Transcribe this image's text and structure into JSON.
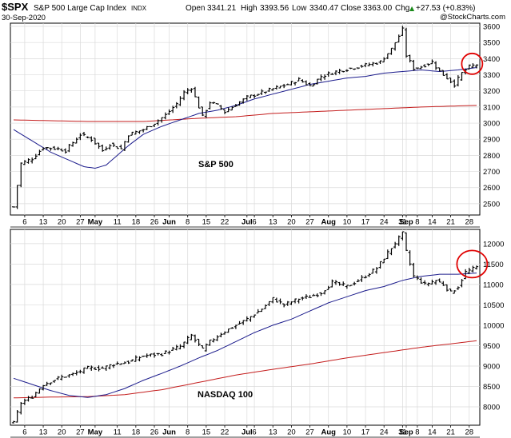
{
  "header": {
    "symbol": "$SPX",
    "name": "S&P 500 Large Cap Index",
    "exchange": "INDX",
    "date": "30-Sep-2020",
    "open_label": "Open",
    "open": "3341.21",
    "high_label": "High",
    "high": "3393.56",
    "low_label": "Low",
    "low": "3340.47",
    "close_label": "Close",
    "close": "3363.00",
    "chg_label": "Chg",
    "chg": "+27.53 (+0.83%)",
    "chg_arrow": "▲",
    "watermark": "@StockCharts.com"
  },
  "colors": {
    "price": "#000000",
    "ma50": "#1c1c8c",
    "ma200": "#c41e1e",
    "circle": "#e00000",
    "grid": "#dadada"
  },
  "x_axis": {
    "ticks": [
      {
        "label": "6",
        "i": 3,
        "bold": false
      },
      {
        "label": "13",
        "i": 8,
        "bold": false
      },
      {
        "label": "20",
        "i": 13,
        "bold": false
      },
      {
        "label": "27",
        "i": 18,
        "bold": false
      },
      {
        "label": "May",
        "i": 22,
        "bold": true
      },
      {
        "label": "11",
        "i": 28,
        "bold": false
      },
      {
        "label": "18",
        "i": 33,
        "bold": false
      },
      {
        "label": "26",
        "i": 38,
        "bold": false
      },
      {
        "label": "Jun",
        "i": 42,
        "bold": true
      },
      {
        "label": "8",
        "i": 47,
        "bold": false
      },
      {
        "label": "15",
        "i": 52,
        "bold": false
      },
      {
        "label": "22",
        "i": 57,
        "bold": false
      },
      {
        "label": "Jul",
        "i": 63,
        "bold": true
      },
      {
        "label": "6",
        "i": 65,
        "bold": false
      },
      {
        "label": "13",
        "i": 70,
        "bold": false
      },
      {
        "label": "20",
        "i": 75,
        "bold": false
      },
      {
        "label": "27",
        "i": 80,
        "bold": false
      },
      {
        "label": "Aug",
        "i": 85,
        "bold": true
      },
      {
        "label": "10",
        "i": 90,
        "bold": false
      },
      {
        "label": "17",
        "i": 95,
        "bold": false
      },
      {
        "label": "24",
        "i": 100,
        "bold": false
      },
      {
        "label": "31",
        "i": 105,
        "bold": false
      },
      {
        "label": "Sep",
        "i": 106,
        "bold": true
      },
      {
        "label": "8",
        "i": 109,
        "bold": false
      },
      {
        "label": "14",
        "i": 113,
        "bold": false
      },
      {
        "label": "21",
        "i": 118,
        "bold": false
      },
      {
        "label": "28",
        "i": 123,
        "bold": false
      }
    ]
  },
  "chart_data": [
    {
      "type": "bar",
      "title": "S&P 500",
      "y_ticks": [
        2500,
        2600,
        2700,
        2800,
        2900,
        3000,
        3100,
        3200,
        3300,
        3400,
        3500,
        3600
      ],
      "ylim": [
        2430,
        3620
      ],
      "close_anchors": [
        [
          0,
          2480
        ],
        [
          2,
          2750
        ],
        [
          5,
          2780
        ],
        [
          8,
          2850
        ],
        [
          12,
          2840
        ],
        [
          14,
          2830
        ],
        [
          18,
          2930
        ],
        [
          21,
          2900
        ],
        [
          24,
          2830
        ],
        [
          26,
          2870
        ],
        [
          29,
          2840
        ],
        [
          31,
          2930
        ],
        [
          35,
          2960
        ],
        [
          38,
          3000
        ],
        [
          41,
          3050
        ],
        [
          44,
          3120
        ],
        [
          46,
          3190
        ],
        [
          48,
          3220
        ],
        [
          51,
          3040
        ],
        [
          53,
          3130
        ],
        [
          55,
          3110
        ],
        [
          57,
          3070
        ],
        [
          59,
          3100
        ],
        [
          63,
          3160
        ],
        [
          67,
          3190
        ],
        [
          71,
          3220
        ],
        [
          74,
          3240
        ],
        [
          77,
          3270
        ],
        [
          80,
          3230
        ],
        [
          83,
          3290
        ],
        [
          87,
          3320
        ],
        [
          91,
          3340
        ],
        [
          95,
          3360
        ],
        [
          99,
          3380
        ],
        [
          102,
          3460
        ],
        [
          105,
          3580
        ],
        [
          106,
          3420
        ],
        [
          108,
          3340
        ],
        [
          110,
          3350
        ],
        [
          113,
          3380
        ],
        [
          115,
          3320
        ],
        [
          117,
          3280
        ],
        [
          119,
          3240
        ],
        [
          121,
          3310
        ],
        [
          123,
          3350
        ],
        [
          125,
          3363
        ]
      ],
      "ma50_anchors": [
        [
          0,
          2960
        ],
        [
          5,
          2890
        ],
        [
          10,
          2820
        ],
        [
          15,
          2770
        ],
        [
          19,
          2730
        ],
        [
          22,
          2720
        ],
        [
          25,
          2740
        ],
        [
          28,
          2800
        ],
        [
          31,
          2860
        ],
        [
          35,
          2930
        ],
        [
          40,
          2980
        ],
        [
          45,
          3020
        ],
        [
          50,
          3060
        ],
        [
          55,
          3080
        ],
        [
          60,
          3110
        ],
        [
          65,
          3150
        ],
        [
          70,
          3180
        ],
        [
          75,
          3210
        ],
        [
          80,
          3240
        ],
        [
          85,
          3260
        ],
        [
          90,
          3280
        ],
        [
          95,
          3290
        ],
        [
          100,
          3310
        ],
        [
          105,
          3320
        ],
        [
          110,
          3330
        ],
        [
          115,
          3320
        ],
        [
          120,
          3330
        ],
        [
          125,
          3345
        ]
      ],
      "ma200_anchors": [
        [
          0,
          3020
        ],
        [
          20,
          3010
        ],
        [
          35,
          3010
        ],
        [
          50,
          3030
        ],
        [
          60,
          3040
        ],
        [
          70,
          3060
        ],
        [
          80,
          3070
        ],
        [
          90,
          3080
        ],
        [
          100,
          3090
        ],
        [
          110,
          3100
        ],
        [
          125,
          3110
        ]
      ],
      "circle_center": [
        124,
        3368
      ]
    },
    {
      "type": "bar",
      "title": "NASDAQ 100",
      "y_ticks": [
        8000,
        8500,
        9000,
        9500,
        10000,
        10500,
        11000,
        11500,
        12000
      ],
      "ylim": [
        7550,
        12350
      ],
      "close_anchors": [
        [
          0,
          7600
        ],
        [
          2,
          8100
        ],
        [
          5,
          8250
        ],
        [
          8,
          8550
        ],
        [
          12,
          8700
        ],
        [
          16,
          8800
        ],
        [
          20,
          8950
        ],
        [
          24,
          8950
        ],
        [
          27,
          9050
        ],
        [
          31,
          9100
        ],
        [
          35,
          9250
        ],
        [
          40,
          9300
        ],
        [
          45,
          9480
        ],
        [
          48,
          9750
        ],
        [
          51,
          9400
        ],
        [
          53,
          9600
        ],
        [
          56,
          9800
        ],
        [
          59,
          9950
        ],
        [
          63,
          10150
        ],
        [
          67,
          10400
        ],
        [
          70,
          10650
        ],
        [
          73,
          10500
        ],
        [
          77,
          10650
        ],
        [
          80,
          10700
        ],
        [
          83,
          10800
        ],
        [
          86,
          11050
        ],
        [
          90,
          10950
        ],
        [
          94,
          11150
        ],
        [
          98,
          11400
        ],
        [
          102,
          11900
        ],
        [
          105,
          12250
        ],
        [
          106,
          11800
        ],
        [
          108,
          11200
        ],
        [
          111,
          11000
        ],
        [
          114,
          11100
        ],
        [
          116,
          11000
        ],
        [
          118,
          10800
        ],
        [
          120,
          10950
        ],
        [
          122,
          11300
        ],
        [
          125,
          11420
        ]
      ],
      "ma50_anchors": [
        [
          0,
          8700
        ],
        [
          5,
          8550
        ],
        [
          10,
          8400
        ],
        [
          15,
          8280
        ],
        [
          20,
          8230
        ],
        [
          25,
          8300
        ],
        [
          30,
          8450
        ],
        [
          35,
          8650
        ],
        [
          40,
          8820
        ],
        [
          45,
          9000
        ],
        [
          50,
          9200
        ],
        [
          55,
          9380
        ],
        [
          60,
          9600
        ],
        [
          65,
          9820
        ],
        [
          70,
          10000
        ],
        [
          75,
          10150
        ],
        [
          80,
          10350
        ],
        [
          85,
          10550
        ],
        [
          90,
          10700
        ],
        [
          95,
          10850
        ],
        [
          100,
          10950
        ],
        [
          105,
          11100
        ],
        [
          110,
          11200
        ],
        [
          115,
          11250
        ],
        [
          120,
          11250
        ],
        [
          125,
          11280
        ]
      ],
      "ma200_anchors": [
        [
          0,
          8220
        ],
        [
          10,
          8240
        ],
        [
          20,
          8250
        ],
        [
          30,
          8300
        ],
        [
          40,
          8420
        ],
        [
          50,
          8600
        ],
        [
          60,
          8780
        ],
        [
          70,
          8920
        ],
        [
          80,
          9050
        ],
        [
          90,
          9200
        ],
        [
          100,
          9330
        ],
        [
          110,
          9460
        ],
        [
          125,
          9620
        ]
      ],
      "circle_center": [
        124,
        11500
      ]
    }
  ]
}
